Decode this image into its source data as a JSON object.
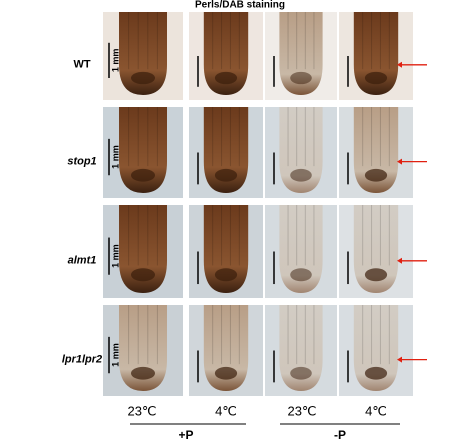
{
  "title": "Perls/DAB staining",
  "rows": [
    {
      "label": "WT",
      "scale_label": "1 mm"
    },
    {
      "label": "stop1",
      "scale_label": "1 mm"
    },
    {
      "label": "almt1",
      "scale_label": "1 mm"
    },
    {
      "label": "lpr1lpr2",
      "scale_label": "1 mm"
    }
  ],
  "column_labels": [
    "23℃",
    "4℃",
    "23℃",
    "4℃"
  ],
  "groups": [
    "+P",
    "-P"
  ]
}
